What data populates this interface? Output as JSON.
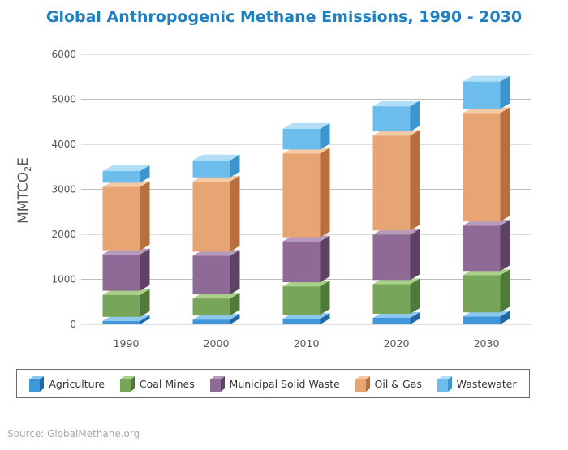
{
  "chart_data": {
    "type": "bar",
    "stacked": true,
    "title": "Global Anthropogenic Methane Emissions, 1990 - 2030",
    "ylabel": {
      "main": "MMTCO",
      "sub": "2",
      "tail": "E"
    },
    "ylim": [
      0,
      6000
    ],
    "yticks": [
      0,
      1000,
      2000,
      3000,
      4000,
      5000,
      6000
    ],
    "grid": true,
    "legend_position": "bottom",
    "categories": [
      "1990",
      "2000",
      "2010",
      "2020",
      "2030"
    ],
    "series": [
      {
        "name": "Agriculture",
        "values": [
          120,
          150,
          170,
          190,
          220
        ],
        "color": "#3f96d8",
        "top": "#8cc8f0",
        "side": "#2167a5"
      },
      {
        "name": "Coal Mines",
        "values": [
          580,
          470,
          720,
          750,
          920
        ],
        "color": "#77a65a",
        "top": "#a9d08a",
        "side": "#4f7a3a"
      },
      {
        "name": "Municipal Solid Waste",
        "values": [
          900,
          950,
          1000,
          1100,
          1100
        ],
        "color": "#8f6a96",
        "top": "#b69abc",
        "side": "#5e4263"
      },
      {
        "name": "Oil & Gas",
        "values": [
          1500,
          1650,
          1950,
          2200,
          2500
        ],
        "color": "#e8a574",
        "top": "#f5c9a4",
        "side": "#b86e3d"
      },
      {
        "name": "Wastewater",
        "values": [
          350,
          470,
          550,
          650,
          700
        ],
        "color": "#6dbdec",
        "top": "#b2def8",
        "side": "#3c95cf"
      }
    ]
  },
  "source": "Source: GlobalMethane.org"
}
